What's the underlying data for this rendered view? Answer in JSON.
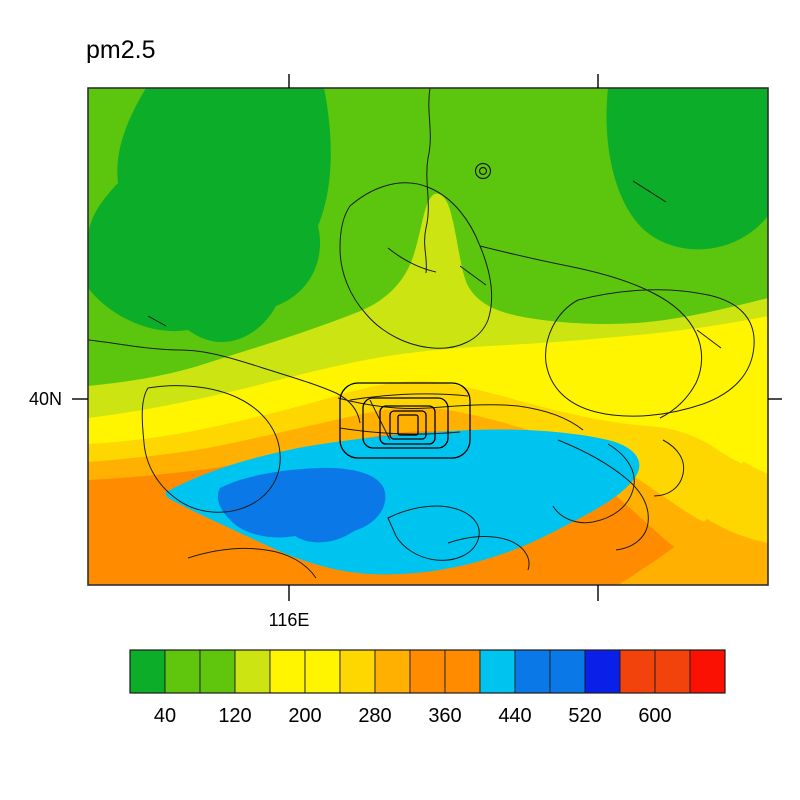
{
  "title": "pm2.5",
  "axes": {
    "y_tick_label": "40N",
    "x_tick_label": "116E"
  },
  "colorbar": {
    "labels": [
      "40",
      "120",
      "200",
      "280",
      "360",
      "440",
      "520",
      "600"
    ],
    "colors": [
      "#0CAD28",
      "#5FC60D",
      "#5FC60D",
      "#CCE512",
      "#FFF500",
      "#FFF500",
      "#FFD700",
      "#FFB000",
      "#FF8C00",
      "#FF8C00",
      "#00C4F0",
      "#0A78E6",
      "#0A78E6",
      "#0A1FE8",
      "#F2430C",
      "#F2430C",
      "#FB1004"
    ],
    "level_step": 40
  },
  "chart_data": {
    "type": "heatmap",
    "subtype": "filled-contour-map",
    "title": "pm2.5",
    "x_ticks": [
      "116E"
    ],
    "y_ticks": [
      "40N"
    ],
    "contour_levels": [
      40,
      80,
      120,
      160,
      200,
      240,
      280,
      320,
      360,
      400,
      440,
      480,
      520,
      560,
      600,
      640
    ],
    "labeled_levels": [
      40,
      120,
      200,
      280,
      360,
      440,
      520,
      600
    ],
    "palette": [
      "#0CAD28",
      "#5FC60D",
      "#5FC60D",
      "#CCE512",
      "#FFF500",
      "#FFF500",
      "#FFD700",
      "#FFB000",
      "#FF8C00",
      "#FF8C00",
      "#00C4F0",
      "#0A78E6",
      "#0A78E6",
      "#0A1FE8",
      "#F2430C",
      "#F2430C",
      "#FB1004"
    ],
    "legend_position": "bottom",
    "grid": false,
    "regions": [
      {
        "area": "north band (top of map)",
        "value_range": "40-120",
        "colors": [
          "#0CAD28",
          "#5FC60D"
        ]
      },
      {
        "area": "center-north band",
        "value_range": "120-240",
        "colors": [
          "#CCE512",
          "#FFF500"
        ]
      },
      {
        "area": "center band around 40N",
        "value_range": "240-360",
        "colors": [
          "#FFD700",
          "#FFB000"
        ]
      },
      {
        "area": "center (nested contour rings near 116E/40N) and south & east margins",
        "value_range": "360-440",
        "colors": [
          "#FF8C00"
        ]
      },
      {
        "area": "large lobe south of center",
        "value_range": "440-480",
        "colors": [
          "#00C4F0"
        ]
      },
      {
        "area": "core inside southern lobe",
        "value_range": "480-560",
        "colors": [
          "#0A78E6"
        ]
      }
    ],
    "overlays": [
      "county/province boundary polylines",
      "nested closed contour rings near map center",
      "double-circle station marker north of center"
    ]
  }
}
